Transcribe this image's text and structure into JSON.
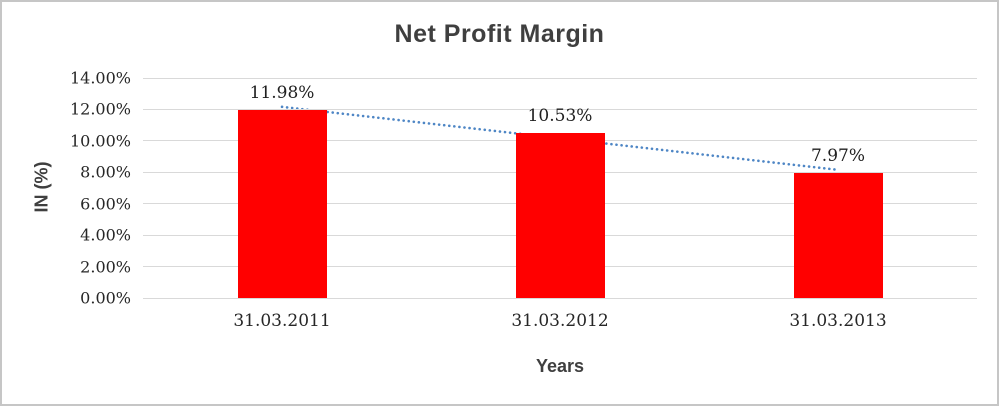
{
  "chart_data": {
    "type": "bar",
    "title": "Net Profit Margin",
    "categories": [
      "31.03.2011",
      "31.03.2012",
      "31.03.2013"
    ],
    "values": [
      11.98,
      10.53,
      7.97
    ],
    "data_labels": [
      "11.98%",
      "10.53%",
      "7.97%"
    ],
    "xlabel": "Years",
    "ylabel": "IN (%)",
    "ylim": [
      0,
      14
    ],
    "ytick_step": 2,
    "ytick_labels": [
      "0.00%",
      "2.00%",
      "4.00%",
      "6.00%",
      "8.00%",
      "10.00%",
      "12.00%",
      "14.00%"
    ],
    "grid": true,
    "legend": "none",
    "bar_color": "#ff0000",
    "trendline": {
      "type": "linear",
      "style": "dotted",
      "color": "#4e86c5"
    },
    "colors": {
      "gridline": "#d9d9d9",
      "title_text": "#3f3f3f",
      "tick_text": "#262626",
      "frame_border": "#c6c6c6"
    }
  }
}
